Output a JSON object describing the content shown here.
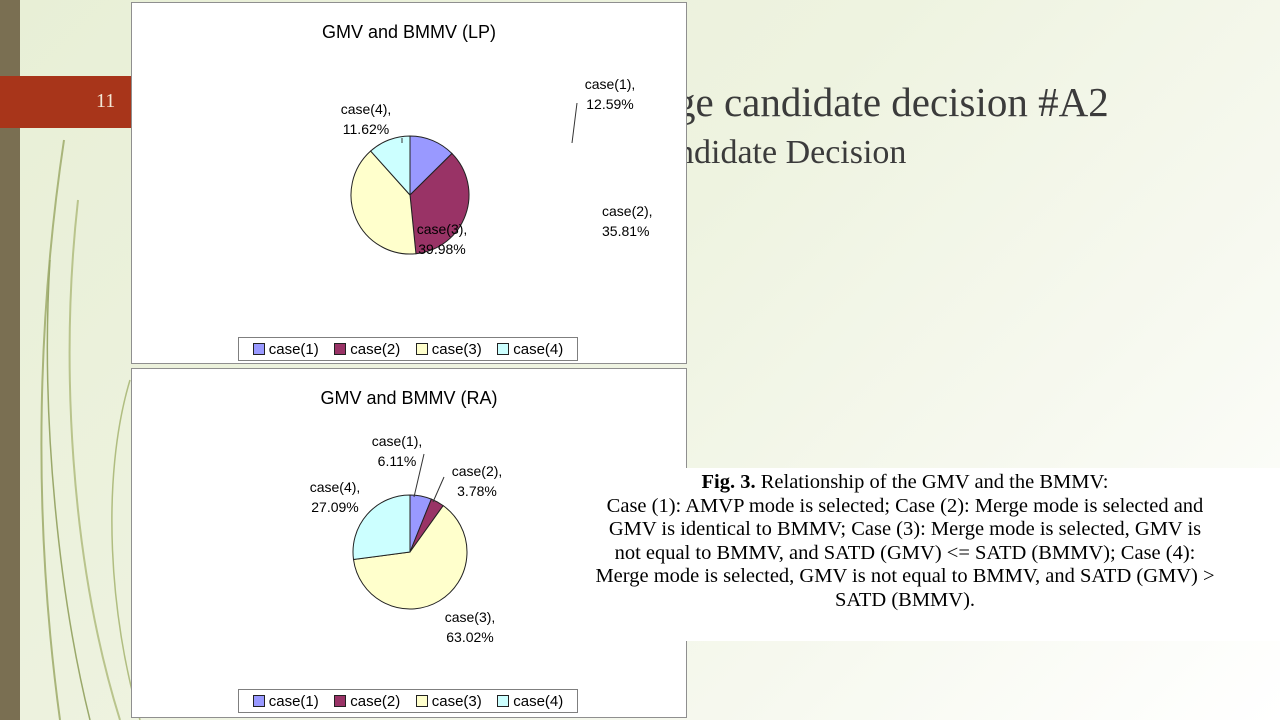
{
  "slide": {
    "number": "11",
    "title": "ge candidate decision #A2",
    "subtitle": "ndidate Decision"
  },
  "chart_data": [
    {
      "type": "pie",
      "title": "GMV and BMMV (LP)",
      "categories": [
        "case(1)",
        "case(2)",
        "case(3)",
        "case(4)"
      ],
      "values": [
        12.59,
        35.81,
        39.98,
        11.62
      ],
      "value_labels": [
        "12.59%",
        "35.81%",
        "39.98%",
        "11.62%"
      ],
      "colors": [
        "#9999ff",
        "#993366",
        "#ffffcc",
        "#ccffff"
      ],
      "legend_position": "bottom"
    },
    {
      "type": "pie",
      "title": "GMV and BMMV (RA)",
      "categories": [
        "case(1)",
        "case(2)",
        "case(3)",
        "case(4)"
      ],
      "values": [
        6.11,
        3.78,
        63.02,
        27.09
      ],
      "value_labels": [
        "6.11%",
        "3.78%",
        "63.02%",
        "27.09%"
      ],
      "colors": [
        "#9999ff",
        "#993366",
        "#ffffcc",
        "#ccffff"
      ],
      "legend_position": "bottom"
    }
  ],
  "caption": {
    "fig_label": "Fig. 3.",
    "heading": " Relationship of the GMV and the BMMV:",
    "lines": [
      "Case (1): AMVP mode is selected; Case (2): Merge mode is selected and",
      "GMV is identical to BMMV; Case (3): Merge mode is selected, GMV is",
      "not equal to BMMV, and SATD (GMV) <= SATD (BMMV); Case (4):",
      "Merge mode is selected, GMV is not equal to BMMV, and SATD (GMV) >",
      "SATD (BMMV)."
    ]
  }
}
